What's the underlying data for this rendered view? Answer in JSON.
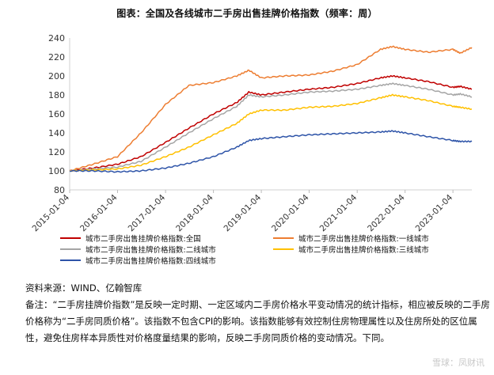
{
  "chart_data": {
    "type": "line",
    "title": "图表：全国及各线城市二手房出售挂牌价格指数（频率：周）",
    "ylim": [
      80,
      240
    ],
    "yticks": [
      80,
      100,
      120,
      140,
      160,
      180,
      200,
      220,
      240
    ],
    "xticks": [
      "2015-01-04",
      "2016-01-04",
      "2017-01-04",
      "2018-01-04",
      "2019-01-04",
      "2020-01-04",
      "2021-01-04",
      "2022-01-04",
      "2023-01-04"
    ],
    "xrange": [
      "2015-01-04",
      "2023-05-28"
    ],
    "grid": false,
    "legend_placement": "bottom",
    "series": [
      {
        "name": "城市二手房出售挂牌价格指数:全国",
        "color": "#c00000",
        "points": [
          [
            "2015-01-04",
            100
          ],
          [
            "2015-07-01",
            103
          ],
          [
            "2016-01-04",
            107
          ],
          [
            "2016-07-01",
            115
          ],
          [
            "2017-01-04",
            130
          ],
          [
            "2017-07-01",
            145
          ],
          [
            "2018-01-04",
            160
          ],
          [
            "2018-07-01",
            172
          ],
          [
            "2018-10-01",
            183
          ],
          [
            "2019-01-04",
            180
          ],
          [
            "2019-07-01",
            183
          ],
          [
            "2020-01-04",
            186
          ],
          [
            "2020-07-01",
            188
          ],
          [
            "2021-01-04",
            192
          ],
          [
            "2021-07-01",
            198
          ],
          [
            "2021-10-01",
            200
          ],
          [
            "2022-01-04",
            198
          ],
          [
            "2022-07-01",
            194
          ],
          [
            "2023-01-04",
            188
          ],
          [
            "2023-03-01",
            189
          ],
          [
            "2023-05-28",
            186
          ]
        ]
      },
      {
        "name": "城市二手房出售挂牌价格指数:一线城市",
        "color": "#ed7d31",
        "points": [
          [
            "2015-01-04",
            100
          ],
          [
            "2015-07-01",
            107
          ],
          [
            "2016-01-04",
            115
          ],
          [
            "2016-07-01",
            140
          ],
          [
            "2017-01-04",
            170
          ],
          [
            "2017-07-01",
            190
          ],
          [
            "2018-01-04",
            193
          ],
          [
            "2018-07-01",
            200
          ],
          [
            "2018-10-01",
            206
          ],
          [
            "2019-01-04",
            198
          ],
          [
            "2019-07-01",
            200
          ],
          [
            "2020-01-04",
            201
          ],
          [
            "2020-07-01",
            205
          ],
          [
            "2021-01-04",
            212
          ],
          [
            "2021-07-01",
            228
          ],
          [
            "2021-10-01",
            231
          ],
          [
            "2022-01-04",
            228
          ],
          [
            "2022-07-01",
            225
          ],
          [
            "2023-01-04",
            228
          ],
          [
            "2023-03-01",
            224
          ],
          [
            "2023-05-28",
            230
          ]
        ]
      },
      {
        "name": "城市二手房出售挂牌价格指数:二线城市",
        "color": "#a5a5a5",
        "points": [
          [
            "2015-01-04",
            100
          ],
          [
            "2015-07-01",
            102
          ],
          [
            "2016-01-04",
            104
          ],
          [
            "2016-07-01",
            110
          ],
          [
            "2017-01-04",
            125
          ],
          [
            "2017-07-01",
            140
          ],
          [
            "2018-01-04",
            155
          ],
          [
            "2018-07-01",
            168
          ],
          [
            "2018-10-01",
            180
          ],
          [
            "2019-01-04",
            178
          ],
          [
            "2019-07-01",
            180
          ],
          [
            "2020-01-04",
            183
          ],
          [
            "2020-07-01",
            184
          ],
          [
            "2021-01-04",
            186
          ],
          [
            "2021-07-01",
            190
          ],
          [
            "2021-10-01",
            192
          ],
          [
            "2022-01-04",
            190
          ],
          [
            "2022-07-01",
            186
          ],
          [
            "2023-01-04",
            180
          ],
          [
            "2023-03-01",
            181
          ],
          [
            "2023-05-28",
            178
          ]
        ]
      },
      {
        "name": "城市二手房出售挂牌价格指数:三线城市",
        "color": "#ffc000",
        "points": [
          [
            "2015-01-04",
            100
          ],
          [
            "2015-07-01",
            101
          ],
          [
            "2016-01-04",
            102
          ],
          [
            "2016-07-01",
            106
          ],
          [
            "2017-01-04",
            115
          ],
          [
            "2017-07-01",
            125
          ],
          [
            "2018-01-04",
            138
          ],
          [
            "2018-07-01",
            150
          ],
          [
            "2018-10-01",
            160
          ],
          [
            "2019-01-04",
            164
          ],
          [
            "2019-07-01",
            164
          ],
          [
            "2020-01-04",
            167
          ],
          [
            "2020-07-01",
            168
          ],
          [
            "2021-01-04",
            171
          ],
          [
            "2021-07-01",
            177
          ],
          [
            "2021-10-01",
            180
          ],
          [
            "2022-01-04",
            178
          ],
          [
            "2022-07-01",
            174
          ],
          [
            "2023-01-04",
            168
          ],
          [
            "2023-03-01",
            167
          ],
          [
            "2023-05-28",
            165
          ]
        ]
      },
      {
        "name": "城市二手房出售挂牌价格指数:四线城市",
        "color": "#2e54a8",
        "points": [
          [
            "2015-01-04",
            100
          ],
          [
            "2015-07-01",
            100
          ],
          [
            "2016-01-04",
            99
          ],
          [
            "2016-07-01",
            100
          ],
          [
            "2017-01-04",
            103
          ],
          [
            "2017-07-01",
            108
          ],
          [
            "2018-01-04",
            115
          ],
          [
            "2018-07-01",
            125
          ],
          [
            "2018-10-01",
            132
          ],
          [
            "2019-01-04",
            134
          ],
          [
            "2019-07-01",
            136
          ],
          [
            "2020-01-04",
            138
          ],
          [
            "2020-07-01",
            139
          ],
          [
            "2021-01-04",
            140
          ],
          [
            "2021-07-01",
            141
          ],
          [
            "2021-10-01",
            142
          ],
          [
            "2022-01-04",
            140
          ],
          [
            "2022-07-01",
            136
          ],
          [
            "2023-01-04",
            132
          ],
          [
            "2023-03-01",
            131
          ],
          [
            "2023-05-28",
            131
          ]
        ]
      }
    ]
  },
  "notes": {
    "source": "资料来源：WIND、亿翰智库",
    "remark": "备注：“二手房挂牌价指数”是反映一定时期、一定区域内二手房价格水平变动情况的统计指标，相应被反映的二手房价格称为“二手房同质价格”。该指数不包含CPI的影响。该指数能够有效控制住房物理属性以及住房所处的区位属性，避免住房样本异质性对价格度量结果的影响，反映二手房同质价格的变动情况。下同。"
  },
  "footer": {
    "watermark": "雪球：凤财讯"
  }
}
